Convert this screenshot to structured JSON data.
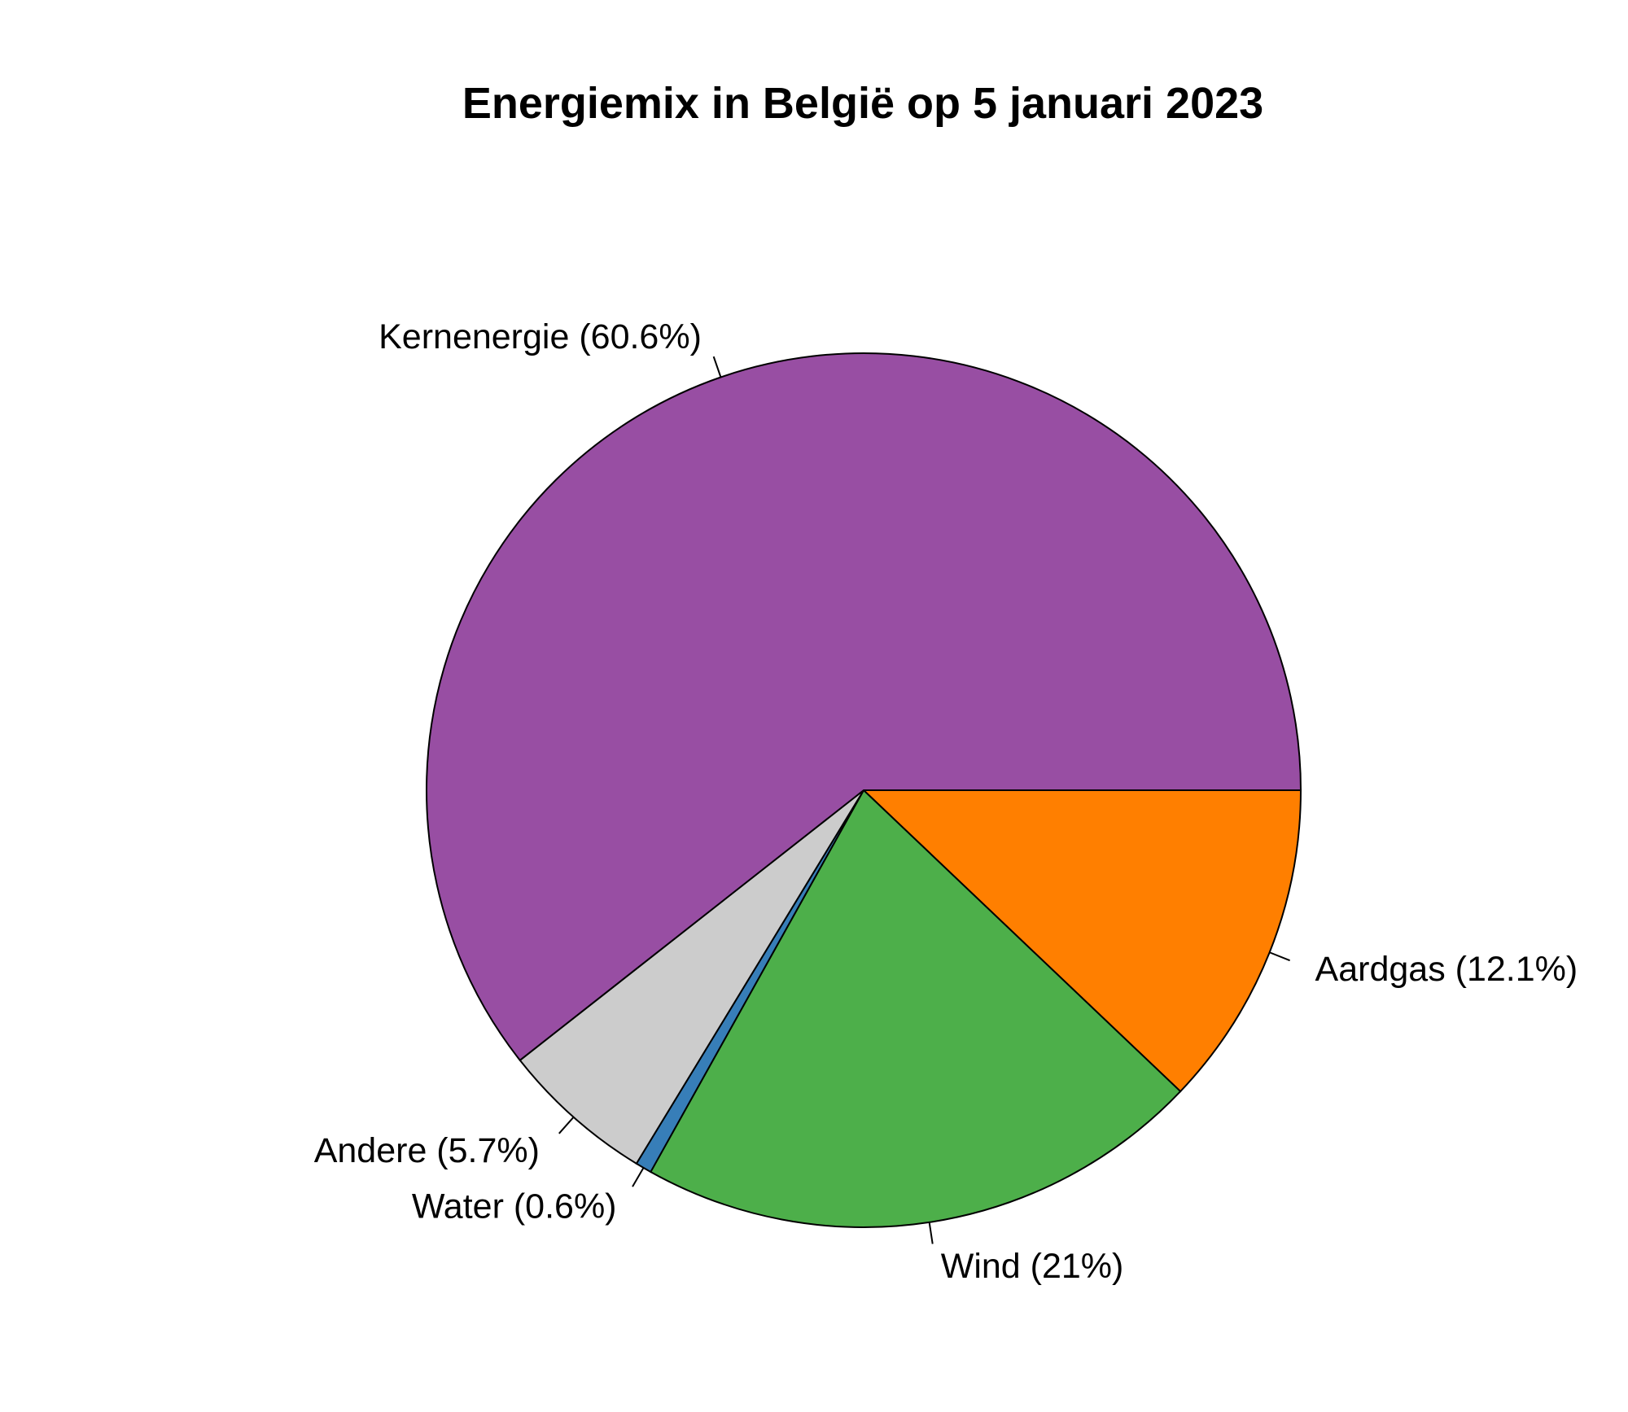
{
  "chart_data": {
    "type": "pie",
    "title": "Energiemix in België op 5 januari 2023",
    "direction": "clockwise",
    "start": "3 o'clock",
    "slices": [
      {
        "label": "Aardgas (12.1%)",
        "value": 12.1,
        "color": "#FF7F00"
      },
      {
        "label": "Wind (21%)",
        "value": 21.0,
        "color": "#4DAF4A"
      },
      {
        "label": "Water (0.6%)",
        "value": 0.6,
        "color": "#377EB8"
      },
      {
        "label": "Andere (5.7%)",
        "value": 5.7,
        "color": "#CCCCCC"
      },
      {
        "label": "Kernenergie (60.6%)",
        "value": 60.6,
        "color": "#984EA3"
      }
    ]
  }
}
